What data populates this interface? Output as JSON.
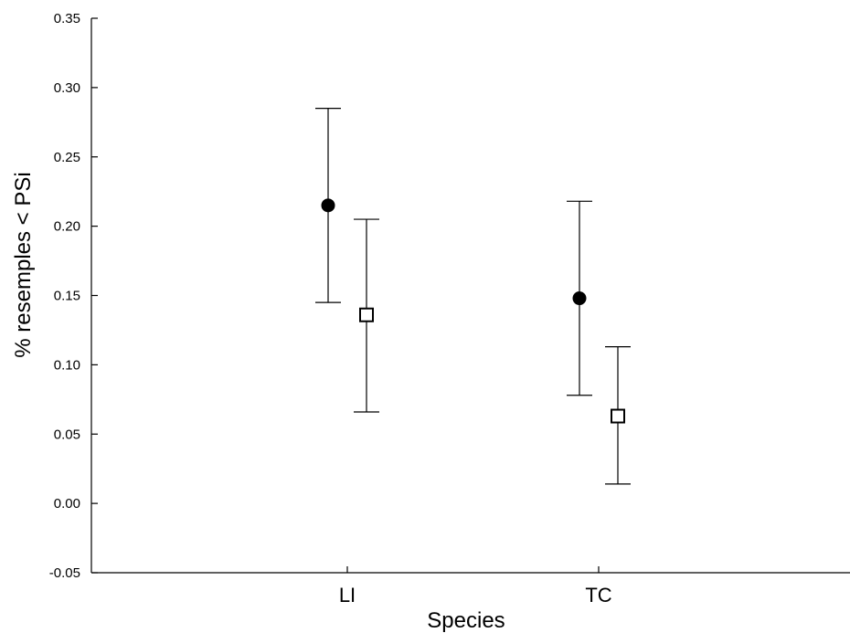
{
  "chart_data": {
    "type": "scatter",
    "xlabel": "Species",
    "ylabel": "% resemples < PSi",
    "categories": [
      "LI",
      "TC"
    ],
    "ylim": [
      -0.05,
      0.35
    ],
    "yticks": [
      "-0.05",
      "0.00",
      "0.05",
      "0.10",
      "0.15",
      "0.20",
      "0.25",
      "0.30",
      "0.35"
    ],
    "grid": false,
    "legend": "none",
    "series": [
      {
        "marker": "filled-circle",
        "color": "#000000",
        "values": [
          0.215,
          0.148
        ],
        "lower": [
          0.145,
          0.078
        ],
        "upper": [
          0.285,
          0.218
        ]
      },
      {
        "marker": "open-square",
        "color": "#000000",
        "values": [
          0.136,
          0.063
        ],
        "lower": [
          0.066,
          0.014
        ],
        "upper": [
          0.205,
          0.113
        ]
      }
    ]
  }
}
